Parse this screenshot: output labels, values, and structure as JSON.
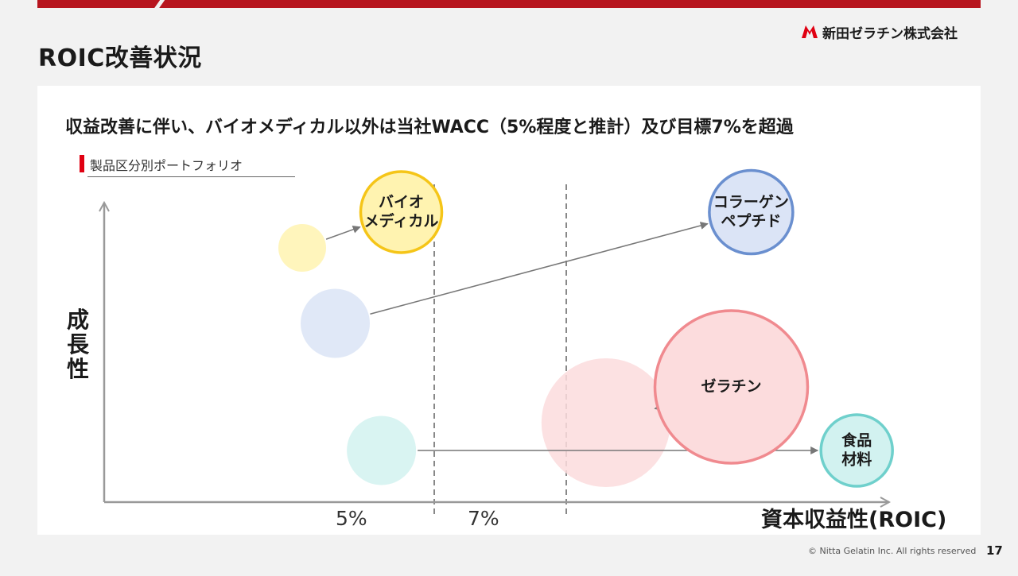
{
  "header": {
    "title": "ROIC改善状況",
    "company": "新田ゼラチン株式会社",
    "brand_color": "#b7151e"
  },
  "subtitle": "収益改善に伴い、バイオメディカル以外は当社WACC（5%程度と推計）及び目標7%を超過",
  "section": {
    "label": "製品区分別ポートフォリオ",
    "marker_color": "#e00012"
  },
  "chart_data": {
    "type": "bubble",
    "title": "",
    "xlabel": "資本収益性(ROIC)",
    "ylabel": "成長性",
    "reference_lines": [
      {
        "x": 5,
        "label": "5%",
        "style": "dashed"
      },
      {
        "x": 7,
        "label": "7%",
        "style": "dashed"
      }
    ],
    "series": [
      {
        "name": "バイオメディカル",
        "label_lines": [
          "バイオ",
          "メディカル"
        ],
        "color": "#f5c518",
        "fill": "#fff3b0",
        "from": {
          "x": 3.0,
          "y": 6.4,
          "size": 2.0
        },
        "to": {
          "x": 4.5,
          "y": 7.3,
          "size": 3.4
        }
      },
      {
        "name": "コラーゲンペプチド",
        "label_lines": [
          "コラーゲン",
          "ペプチド"
        ],
        "color": "#6a8fcf",
        "fill": "#dbe4f6",
        "from": {
          "x": 3.5,
          "y": 4.5,
          "size": 2.9
        },
        "to": {
          "x": 9.8,
          "y": 7.3,
          "size": 3.5
        }
      },
      {
        "name": "ゼラチン",
        "label_lines": [
          "ゼラチン"
        ],
        "color": "#f08a8f",
        "fill": "#fcdcdd",
        "from": {
          "x": 7.6,
          "y": 2.0,
          "size": 5.4
        },
        "to": {
          "x": 9.5,
          "y": 2.9,
          "size": 6.4
        }
      },
      {
        "name": "食品材料",
        "label_lines": [
          "食品",
          "材料"
        ],
        "color": "#6fd0cc",
        "fill": "#d2f2f0",
        "from": {
          "x": 4.2,
          "y": 1.3,
          "size": 2.9
        },
        "to": {
          "x": 11.4,
          "y": 1.3,
          "size": 3.0
        }
      }
    ]
  },
  "footer": {
    "copyright": "© Nitta Gelatin Inc. All rights reserved",
    "page": "17"
  }
}
